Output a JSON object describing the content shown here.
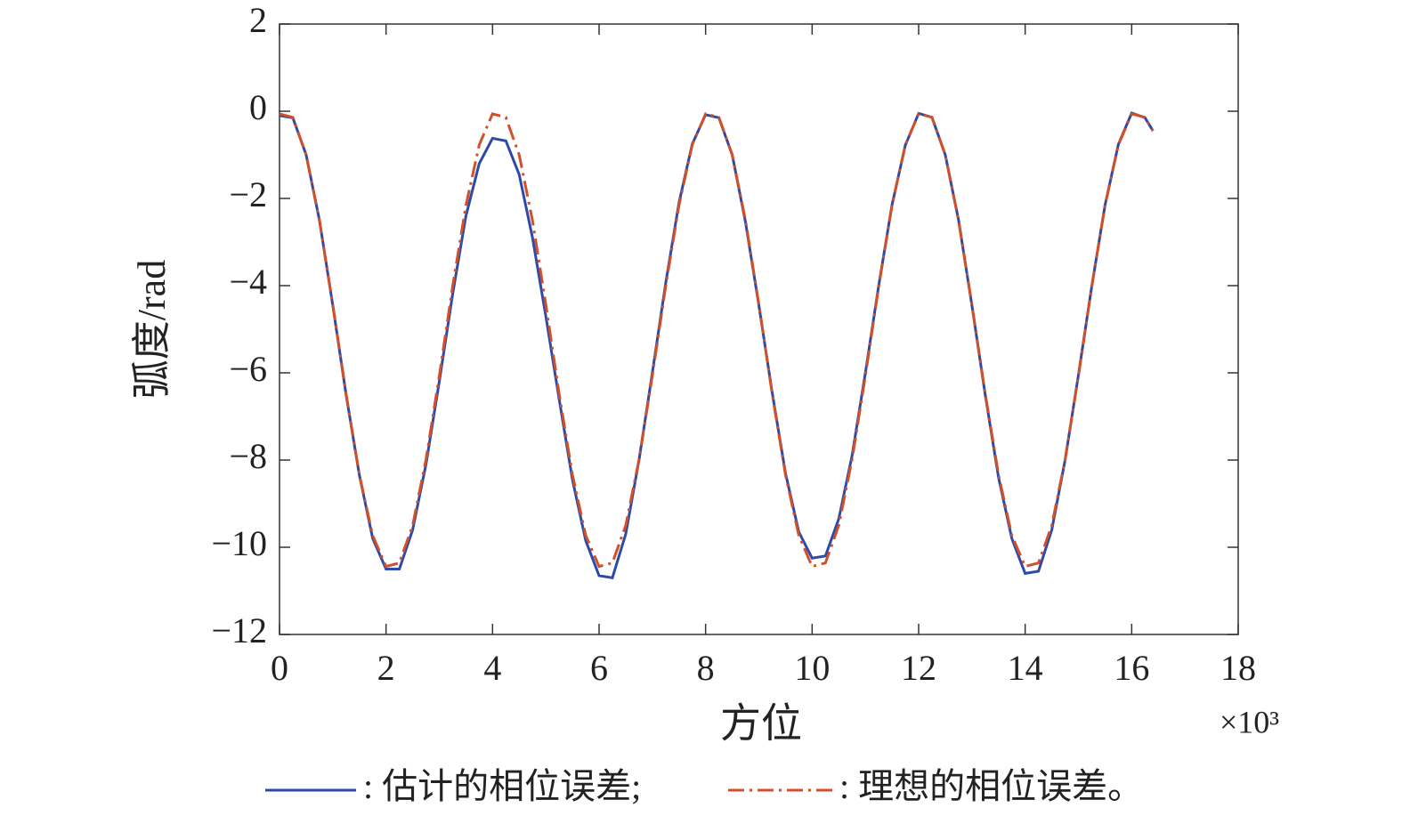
{
  "chart_data": {
    "type": "line",
    "xlabel": "方位",
    "x_multiplier": "×10³",
    "ylabel": "弧度/rad",
    "xlim": [
      0,
      18
    ],
    "xticks": [
      0,
      2,
      4,
      6,
      8,
      10,
      12,
      14,
      16,
      18
    ],
    "ylim": [
      -12,
      2
    ],
    "yticks": [
      {
        "value": -12,
        "label": "−12"
      },
      {
        "value": -10,
        "label": "−10"
      },
      {
        "value": -8,
        "label": "−8"
      },
      {
        "value": -6,
        "label": "−6"
      },
      {
        "value": -4,
        "label": "−4"
      },
      {
        "value": -2,
        "label": "−2"
      },
      0,
      2
    ],
    "grid": false,
    "x": [
      0,
      0.25,
      0.5,
      0.75,
      1,
      1.25,
      1.5,
      1.75,
      2,
      2.25,
      2.5,
      2.75,
      3,
      3.25,
      3.5,
      3.75,
      4,
      4.25,
      4.5,
      4.75,
      5,
      5.25,
      5.5,
      5.75,
      6,
      6.25,
      6.5,
      6.75,
      7,
      7.25,
      7.5,
      7.75,
      8,
      8.25,
      8.5,
      8.75,
      9,
      9.25,
      9.5,
      9.75,
      10,
      10.25,
      10.5,
      10.75,
      11,
      11.25,
      11.5,
      11.75,
      12,
      12.25,
      12.5,
      12.75,
      13,
      13.25,
      13.5,
      13.75,
      14,
      14.25,
      14.5,
      14.75,
      15,
      15.25,
      15.5,
      15.75,
      16,
      16.25,
      16.4
    ],
    "series": [
      {
        "name": ": 估计的相位误差;",
        "color": "#2e4aa8",
        "dash": "none",
        "values": [
          -0.1,
          -0.15,
          -1.0,
          -2.5,
          -4.45,
          -6.5,
          -8.35,
          -9.8,
          -10.5,
          -10.5,
          -9.6,
          -8.1,
          -6.2,
          -4.2,
          -2.4,
          -1.2,
          -0.62,
          -0.68,
          -1.45,
          -2.9,
          -4.7,
          -6.6,
          -8.45,
          -9.85,
          -10.65,
          -10.7,
          -9.7,
          -8.0,
          -6.0,
          -3.95,
          -2.1,
          -0.75,
          -0.08,
          -0.15,
          -1.0,
          -2.55,
          -4.45,
          -6.45,
          -8.3,
          -9.65,
          -10.25,
          -10.2,
          -9.35,
          -7.9,
          -6.0,
          -4.0,
          -2.15,
          -0.78,
          -0.05,
          -0.14,
          -1.0,
          -2.5,
          -4.45,
          -6.5,
          -8.4,
          -9.8,
          -10.6,
          -10.55,
          -9.6,
          -8.0,
          -6.05,
          -4.02,
          -2.15,
          -0.76,
          -0.04,
          -0.15,
          -0.45
        ]
      },
      {
        "name": ": 理想的相位误差。",
        "color": "#d0502a",
        "dash": "18 6 3 6",
        "values": [
          -0.06,
          -0.14,
          -1.0,
          -2.51,
          -4.43,
          -6.48,
          -8.34,
          -9.73,
          -10.44,
          -10.36,
          -9.5,
          -7.99,
          -6.07,
          -4.02,
          -2.16,
          -0.77,
          -0.06,
          -0.14,
          -1.0,
          -2.51,
          -4.43,
          -6.48,
          -8.34,
          -9.73,
          -10.44,
          -10.36,
          -9.5,
          -7.99,
          -6.07,
          -4.02,
          -2.16,
          -0.77,
          -0.06,
          -0.14,
          -1.0,
          -2.51,
          -4.43,
          -6.48,
          -8.34,
          -9.73,
          -10.44,
          -10.36,
          -9.5,
          -7.99,
          -6.07,
          -4.02,
          -2.16,
          -0.77,
          -0.06,
          -0.14,
          -1.0,
          -2.51,
          -4.43,
          -6.48,
          -8.34,
          -9.73,
          -10.44,
          -10.36,
          -9.5,
          -7.99,
          -6.07,
          -4.02,
          -2.16,
          -0.77,
          -0.06,
          -0.14,
          -0.45
        ]
      }
    ]
  }
}
